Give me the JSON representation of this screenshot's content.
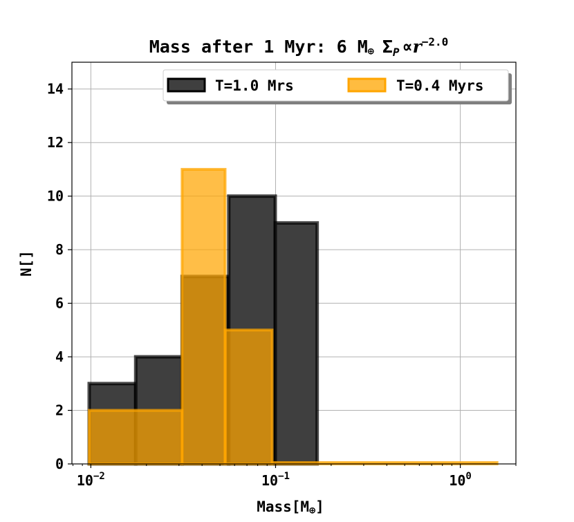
{
  "chart_data": {
    "type": "histogram",
    "title": {
      "main": "Mass after 1 Myr: 6 M",
      "main_sub": "⊕",
      "sigma": "Σ",
      "sigma_sub": "P",
      "propto": "∝",
      "r": "r",
      "r_exp": "−2.0"
    },
    "xlabel": {
      "main": "Mass[M",
      "sub": "⊕",
      "close": "]"
    },
    "ylabel": "N[]",
    "xscale": "log",
    "xlim": [
      0.0079,
      2.0
    ],
    "ylim": [
      0,
      15
    ],
    "yticks": [
      0,
      2,
      4,
      6,
      8,
      10,
      12,
      14
    ],
    "xticks": [
      {
        "value": 0.01,
        "base": "10",
        "exp": "−2"
      },
      {
        "value": 0.1,
        "base": "10",
        "exp": "−1"
      },
      {
        "value": 1,
        "base": "10",
        "exp": "0"
      }
    ],
    "grid": true,
    "legend_position": "top-right",
    "series": [
      {
        "name": "T=1.0 Mrs",
        "color": "#3f3f3f",
        "edge_color": "#000000",
        "bins": [
          {
            "x0": 0.0098,
            "x1": 0.0175,
            "count": 3
          },
          {
            "x0": 0.0175,
            "x1": 0.0312,
            "count": 4
          },
          {
            "x0": 0.0312,
            "x1": 0.0558,
            "count": 7
          },
          {
            "x0": 0.0558,
            "x1": 0.0996,
            "count": 10
          },
          {
            "x0": 0.0996,
            "x1": 0.168,
            "count": 9
          }
        ]
      },
      {
        "name": "T=0.4 Myrs",
        "color": "#ffa500",
        "edge_color": "#ffa500",
        "bins": [
          {
            "x0": 0.0098,
            "x1": 0.0312,
            "count": 2
          },
          {
            "x0": 0.0312,
            "x1": 0.0533,
            "count": 11
          },
          {
            "x0": 0.0533,
            "x1": 0.0958,
            "count": 5
          },
          {
            "x0": 0.0958,
            "x1": 1.58,
            "count": 0
          }
        ]
      }
    ]
  }
}
